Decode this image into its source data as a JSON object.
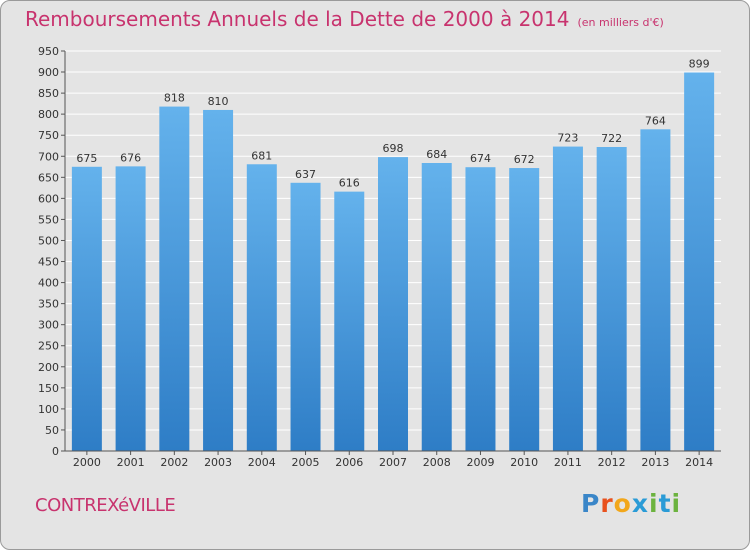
{
  "header": {
    "title": "Remboursements Annuels de la Dette de 2000 à 2014",
    "subtitle": "(en milliers d'€)"
  },
  "footer": {
    "town": "CONTREXéVILLE",
    "brand_letters": [
      "P",
      "r",
      "o",
      "x",
      "i",
      "t",
      "i"
    ],
    "brand_colors": [
      "#3a86c8",
      "#e8511d",
      "#f2a71b",
      "#2a9bd6",
      "#6cb33f",
      "#2a9bd6",
      "#6cb33f"
    ]
  },
  "colors": {
    "bar_top": "#64b2ec",
    "bar_bottom": "#2e7dc6",
    "title": "#c8336e",
    "grid": "#ffffff",
    "plot_bg": "#e4e4e4"
  },
  "chart_data": {
    "type": "bar",
    "title": "Remboursements Annuels de la Dette de 2000 à 2014",
    "categories": [
      "2000",
      "2001",
      "2002",
      "2003",
      "2004",
      "2005",
      "2006",
      "2007",
      "2008",
      "2009",
      "2010",
      "2011",
      "2012",
      "2013",
      "2014"
    ],
    "values": [
      675,
      676,
      818,
      810,
      681,
      637,
      616,
      698,
      684,
      674,
      672,
      723,
      722,
      764,
      899
    ],
    "ylim": [
      0,
      950
    ],
    "yticks": [
      0,
      50,
      100,
      150,
      200,
      250,
      300,
      350,
      400,
      450,
      500,
      550,
      600,
      650,
      700,
      750,
      800,
      850,
      900,
      950
    ],
    "grid": true,
    "xlabel": "",
    "ylabel": ""
  }
}
